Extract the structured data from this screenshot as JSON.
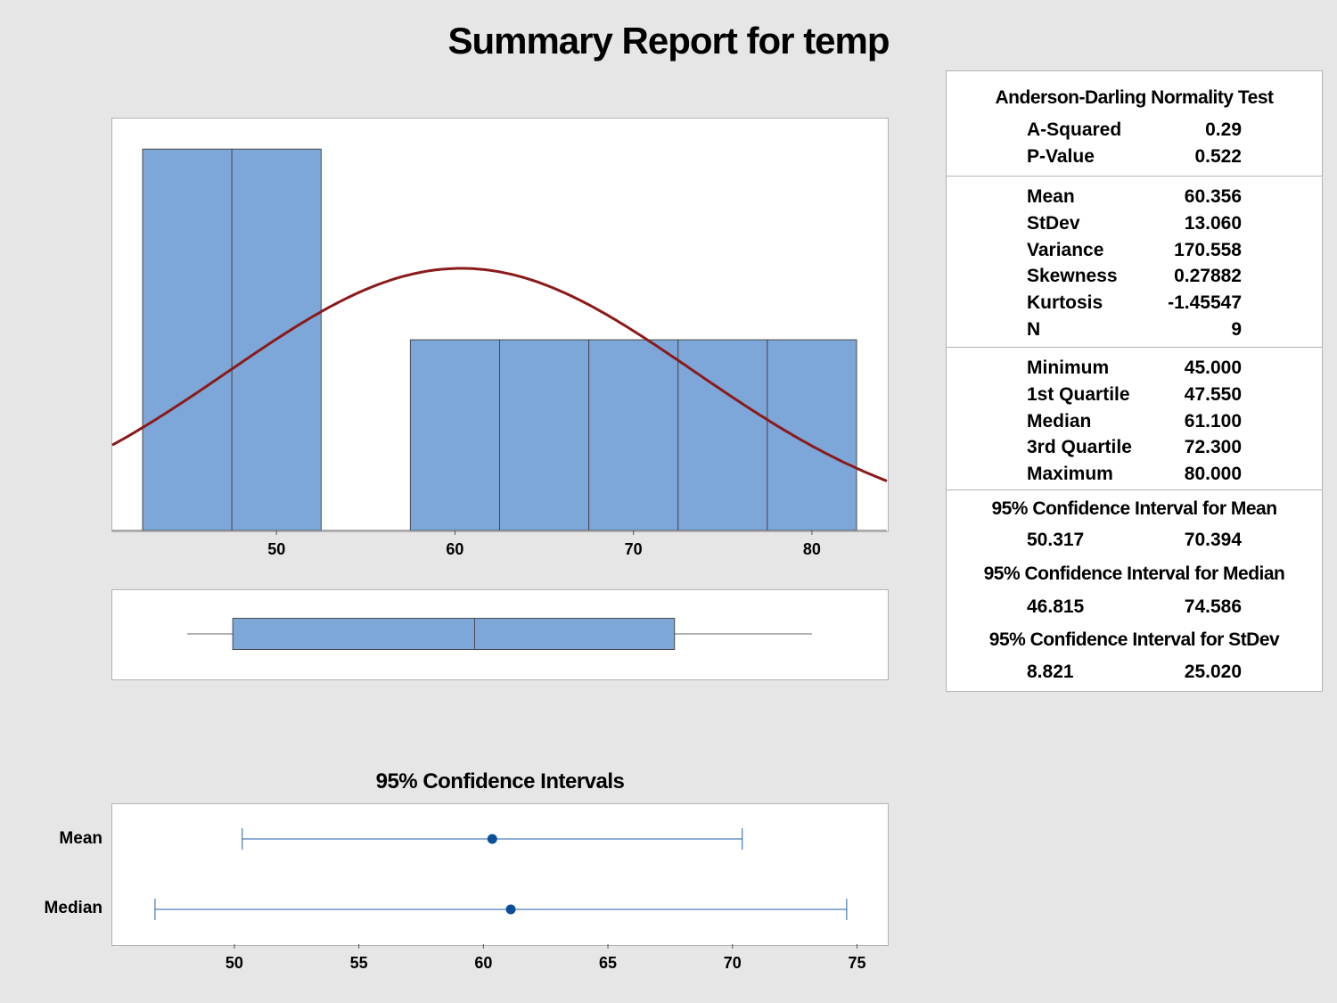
{
  "title": "Summary Report for temp",
  "chart_data": [
    {
      "type": "histogram",
      "bins": [
        {
          "from": 42.5,
          "to": 47.5,
          "count": 2
        },
        {
          "from": 47.5,
          "to": 52.5,
          "count": 2
        },
        {
          "from": 52.5,
          "to": 57.5,
          "count": 0
        },
        {
          "from": 57.5,
          "to": 62.5,
          "count": 1
        },
        {
          "from": 62.5,
          "to": 67.5,
          "count": 1
        },
        {
          "from": 67.5,
          "to": 72.5,
          "count": 1
        },
        {
          "from": 72.5,
          "to": 77.5,
          "count": 1
        },
        {
          "from": 77.5,
          "to": 82.5,
          "count": 1
        }
      ],
      "normal_fit": {
        "mean": 60.356,
        "stdev": 13.06
      },
      "xlim": [
        40.8,
        84.2
      ],
      "ylim": [
        0,
        2.16
      ],
      "xticks": [
        "50",
        "60",
        "70",
        "80"
      ],
      "bar_color": "#7da7d9",
      "curve_color": "#8b1a1a"
    },
    {
      "type": "boxplot",
      "min": 45.0,
      "q1": 47.55,
      "median": 61.1,
      "q3": 72.3,
      "max": 80.0,
      "xlim": [
        40.8,
        84.2
      ]
    },
    {
      "type": "interval",
      "title": "95% Confidence Intervals",
      "rows": [
        {
          "label": "Mean",
          "point": 60.356,
          "low": 50.317,
          "high": 70.394
        },
        {
          "label": "Median",
          "point": 61.1,
          "low": 46.815,
          "high": 74.586
        }
      ],
      "xlim": [
        45.1,
        76.2
      ],
      "xticks": [
        "50",
        "55",
        "60",
        "65",
        "70",
        "75"
      ],
      "color": "#1f5fa8"
    }
  ],
  "stats": {
    "ad_title": "Anderson-Darling Normality Test",
    "ad_rows": [
      {
        "label": "A-Squared",
        "value": "0.29"
      },
      {
        "label": "P-Value",
        "value": "0.522"
      }
    ],
    "moment_rows": [
      {
        "label": "Mean",
        "value": "60.356"
      },
      {
        "label": "StDev",
        "value": "13.060"
      },
      {
        "label": "Variance",
        "value": "170.558"
      },
      {
        "label": "Skewness",
        "value": "0.27882"
      },
      {
        "label": "Kurtosis",
        "value": "-1.45547"
      },
      {
        "label": "N",
        "value": "9"
      }
    ],
    "quantile_rows": [
      {
        "label": "Minimum",
        "value": "45.000"
      },
      {
        "label": "1st Quartile",
        "value": "47.550"
      },
      {
        "label": "Median",
        "value": "61.100"
      },
      {
        "label": "3rd Quartile",
        "value": "72.300"
      },
      {
        "label": "Maximum",
        "value": "80.000"
      }
    ],
    "ci_mean_title": "95% Confidence Interval for Mean",
    "ci_mean_low": "50.317",
    "ci_mean_high": "70.394",
    "ci_median_title": "95% Confidence Interval for Median",
    "ci_median_low": "46.815",
    "ci_median_high": "74.586",
    "ci_stdev_title": "95% Confidence Interval for StDev",
    "ci_stdev_low": "8.821",
    "ci_stdev_high": "25.020"
  }
}
